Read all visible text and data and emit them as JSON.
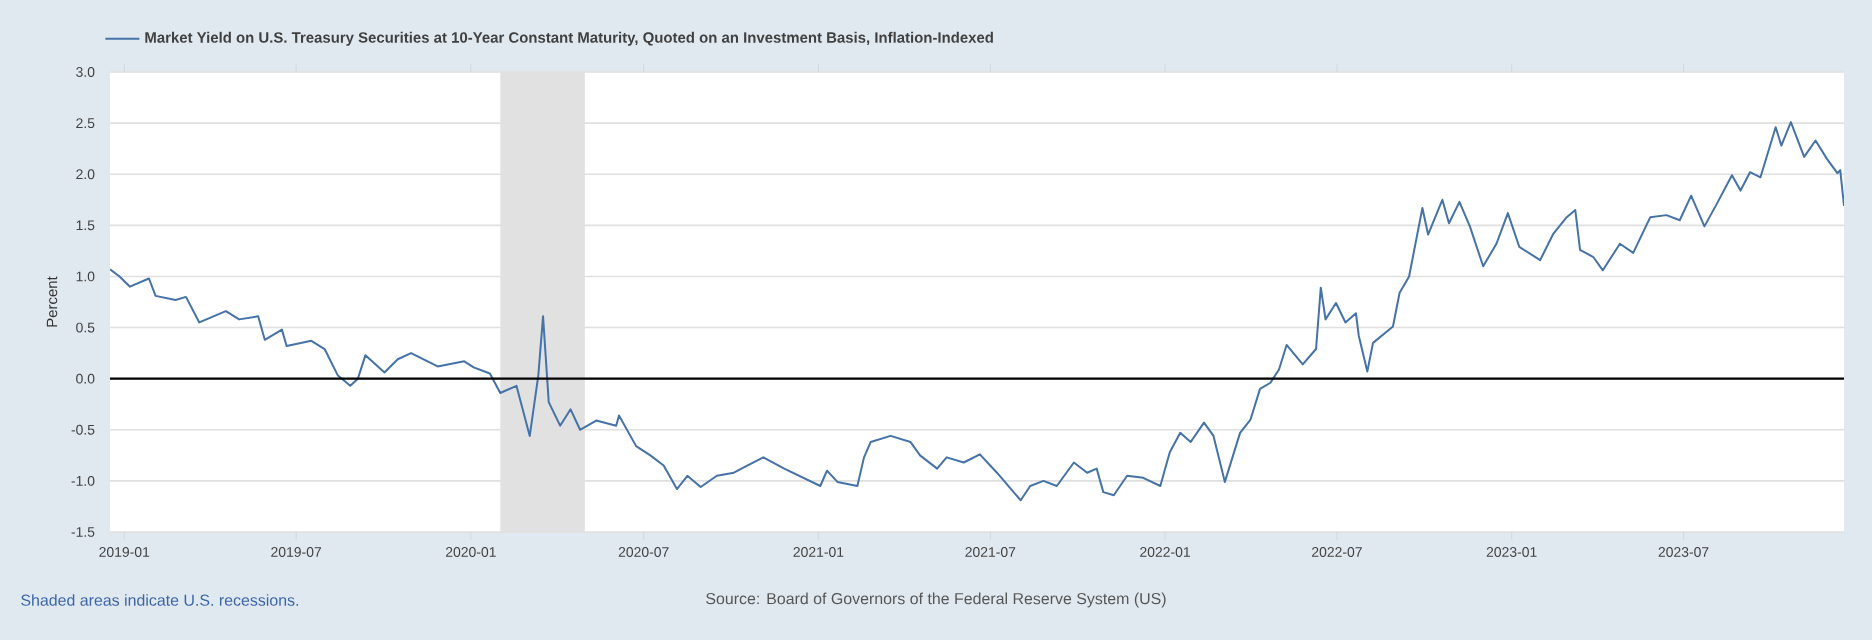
{
  "chart_data": {
    "type": "line",
    "ylabel": "Percent",
    "legend": "top left",
    "grid": "y",
    "marker": "none",
    "line_style": "solid",
    "xlim": [
      "2018-12-17",
      "2023-12-17"
    ],
    "xticks": [
      {
        "value": "2019-01-01",
        "label": "2019-01"
      },
      {
        "value": "2019-07-01",
        "label": "2019-07"
      },
      {
        "value": "2020-01-01",
        "label": "2020-01"
      },
      {
        "value": "2020-07-01",
        "label": "2020-07"
      },
      {
        "value": "2021-01-01",
        "label": "2021-01"
      },
      {
        "value": "2021-07-01",
        "label": "2021-07"
      },
      {
        "value": "2022-01-01",
        "label": "2022-01"
      },
      {
        "value": "2022-07-01",
        "label": "2022-07"
      },
      {
        "value": "2023-01-01",
        "label": "2023-01"
      },
      {
        "value": "2023-07-01",
        "label": "2023-07"
      }
    ],
    "ylim": [
      -1.5,
      3.0
    ],
    "yticks": [
      {
        "value": -1.5,
        "label": "-1.5"
      },
      {
        "value": -1.0,
        "label": "-1.0"
      },
      {
        "value": -0.5,
        "label": "-0.5"
      },
      {
        "value": 0,
        "label": "0.0"
      },
      {
        "value": 0.5,
        "label": "0.5"
      },
      {
        "value": 1.0,
        "label": "1.0"
      },
      {
        "value": 1.5,
        "label": "1.5"
      },
      {
        "value": 2.0,
        "label": "2.0"
      },
      {
        "value": 2.5,
        "label": "2.5"
      },
      {
        "value": 3.0,
        "label": "3.0"
      }
    ],
    "ref_lines": [
      {
        "axis": "y",
        "value": 0,
        "color": "#000000"
      }
    ],
    "bands": [
      {
        "axis": "x",
        "from": "2020-02-01",
        "to": "2020-04-30",
        "color": "#e1e1e1"
      }
    ],
    "annotations": [
      "Shaded areas indicate U.S. recessions.",
      "Source: Board of Governors of the Federal Reserve System (US)"
    ],
    "series": [
      {
        "name": "Market Yield on U.S. Treasury Securities at 10-Year Constant Maturity, Quoted on an Investment Basis, Inflation-Indexed",
        "color": "#4572a7",
        "x": [
          "2018-12-17",
          "2018-12-27",
          "2019-01-07",
          "2019-01-27",
          "2019-02-03",
          "2019-02-24",
          "2019-03-07",
          "2019-03-21",
          "2019-04-18",
          "2019-05-02",
          "2019-05-22",
          "2019-05-29",
          "2019-06-16",
          "2019-06-21",
          "2019-07-17",
          "2019-07-31",
          "2019-08-14",
          "2019-08-27",
          "2019-09-04",
          "2019-09-12",
          "2019-10-02",
          "2019-10-16",
          "2019-10-30",
          "2019-11-27",
          "2019-12-25",
          "2020-01-04",
          "2020-01-21",
          "2020-02-01",
          "2020-02-18",
          "2020-03-03",
          "2020-03-12",
          "2020-03-17",
          "2020-03-23",
          "2020-04-04",
          "2020-04-15",
          "2020-04-25",
          "2020-05-12",
          "2020-06-02",
          "2020-06-05",
          "2020-06-23",
          "2020-07-08",
          "2020-07-22",
          "2020-08-05",
          "2020-08-16",
          "2020-08-30",
          "2020-09-16",
          "2020-10-04",
          "2020-10-18",
          "2020-11-04",
          "2020-11-26",
          "2021-01-03",
          "2021-01-10",
          "2021-01-21",
          "2021-02-11",
          "2021-02-18",
          "2021-02-25",
          "2021-03-18",
          "2021-04-08",
          "2021-04-18",
          "2021-05-06",
          "2021-05-16",
          "2021-06-03",
          "2021-06-20",
          "2021-07-08",
          "2021-08-02",
          "2021-08-12",
          "2021-08-26",
          "2021-09-09",
          "2021-09-27",
          "2021-10-11",
          "2021-10-21",
          "2021-10-28",
          "2021-11-08",
          "2021-11-22",
          "2021-12-09",
          "2021-12-27",
          "2022-01-06",
          "2022-01-17",
          "2022-01-28",
          "2022-02-11",
          "2022-02-21",
          "2022-03-05",
          "2022-03-21",
          "2022-04-01",
          "2022-04-11",
          "2022-04-22",
          "2022-05-01",
          "2022-05-09",
          "2022-05-26",
          "2022-06-09",
          "2022-06-14",
          "2022-06-19",
          "2022-06-30",
          "2022-07-10",
          "2022-07-21",
          "2022-07-24",
          "2022-08-02",
          "2022-08-08",
          "2022-08-29",
          "2022-09-05",
          "2022-09-15",
          "2022-09-29",
          "2022-10-05",
          "2022-10-20",
          "2022-10-27",
          "2022-11-07",
          "2022-11-18",
          "2022-12-02",
          "2022-12-16",
          "2022-12-28",
          "2023-01-09",
          "2023-01-31",
          "2023-02-14",
          "2023-02-28",
          "2023-03-09",
          "2023-03-14",
          "2023-03-28",
          "2023-04-07",
          "2023-04-25",
          "2023-05-09",
          "2023-05-27",
          "2023-06-13",
          "2023-06-27",
          "2023-07-09",
          "2023-07-23",
          "2023-08-05",
          "2023-08-21",
          "2023-08-30",
          "2023-09-09",
          "2023-09-20",
          "2023-10-06",
          "2023-10-12",
          "2023-10-22",
          "2023-11-05",
          "2023-11-17",
          "2023-11-29",
          "2023-12-10",
          "2023-12-13",
          "2023-12-17"
        ],
        "values": [
          1.07,
          1.0,
          0.9,
          0.98,
          0.81,
          0.77,
          0.8,
          0.55,
          0.66,
          0.58,
          0.61,
          0.38,
          0.48,
          0.32,
          0.37,
          0.29,
          0.03,
          -0.07,
          0.0,
          0.23,
          0.06,
          0.19,
          0.25,
          0.12,
          0.17,
          0.11,
          0.05,
          -0.14,
          -0.07,
          -0.56,
          0.03,
          0.61,
          -0.23,
          -0.46,
          -0.3,
          -0.5,
          -0.41,
          -0.46,
          -0.36,
          -0.66,
          -0.75,
          -0.85,
          -1.08,
          -0.95,
          -1.06,
          -0.95,
          -0.92,
          -0.85,
          -0.77,
          -0.88,
          -1.05,
          -0.9,
          -1.01,
          -1.05,
          -0.77,
          -0.62,
          -0.56,
          -0.62,
          -0.75,
          -0.88,
          -0.77,
          -0.82,
          -0.74,
          -0.92,
          -1.19,
          -1.05,
          -1.0,
          -1.05,
          -0.82,
          -0.92,
          -0.88,
          -1.11,
          -1.14,
          -0.95,
          -0.97,
          -1.05,
          -0.72,
          -0.53,
          -0.62,
          -0.43,
          -0.56,
          -1.01,
          -0.53,
          -0.4,
          -0.1,
          -0.04,
          0.09,
          0.33,
          0.14,
          0.29,
          0.89,
          0.58,
          0.74,
          0.55,
          0.64,
          0.42,
          0.07,
          0.35,
          0.51,
          0.84,
          1.0,
          1.67,
          1.41,
          1.75,
          1.52,
          1.73,
          1.49,
          1.1,
          1.32,
          1.62,
          1.29,
          1.16,
          1.42,
          1.58,
          1.65,
          1.26,
          1.19,
          1.06,
          1.32,
          1.23,
          1.58,
          1.6,
          1.55,
          1.79,
          1.49,
          1.71,
          1.99,
          1.84,
          2.02,
          1.97,
          2.46,
          2.28,
          2.51,
          2.17,
          2.33,
          2.15,
          2.01,
          2.04,
          1.69
        ]
      }
    ]
  }
}
